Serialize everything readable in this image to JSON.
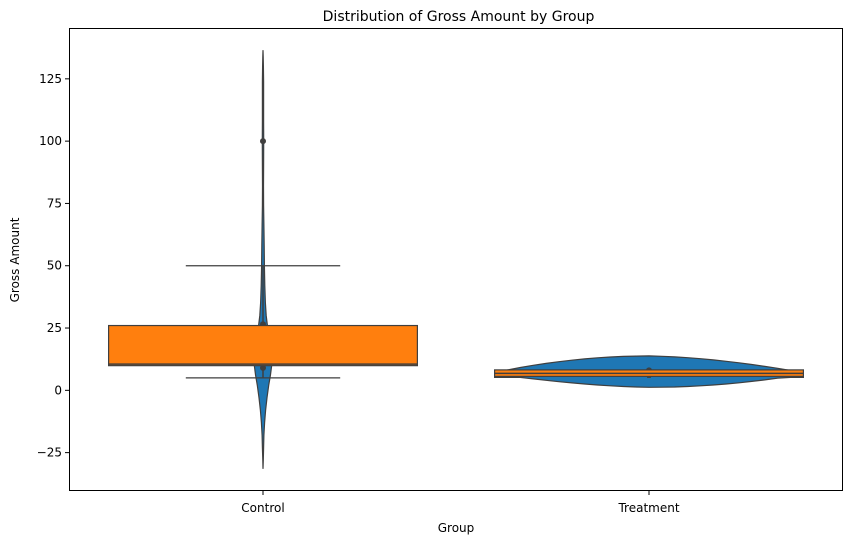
{
  "chart_data": {
    "type": "violin",
    "title": "Distribution of Gross Amount by Group",
    "xlabel": "Group",
    "ylabel": "Gross Amount",
    "categories": [
      "Control",
      "Treatment"
    ],
    "ylim": [
      -40,
      145
    ],
    "yticks": [
      -25,
      0,
      25,
      50,
      75,
      100,
      125
    ],
    "ytick_labels": [
      "−25",
      "0",
      "25",
      "50",
      "75",
      "100",
      "125"
    ],
    "grid": false,
    "legend": "none",
    "colors": {
      "violin": "#1f77b4",
      "box": "#ff7f0e",
      "line": "#3f3f3f"
    },
    "violins": [
      {
        "category": "Control",
        "range": [
          -31.5,
          136.5
        ],
        "density_profile": [
          [
            -31.5,
            0.0
          ],
          [
            -28,
            0.25
          ],
          [
            -23,
            0.6
          ],
          [
            -18,
            0.95
          ],
          [
            -13,
            1.55
          ],
          [
            -8,
            2.6
          ],
          [
            -3,
            4.0
          ],
          [
            2,
            5.7
          ],
          [
            6,
            7.4
          ],
          [
            10,
            8.7
          ],
          [
            14,
            9.2
          ],
          [
            18,
            8.2
          ],
          [
            22,
            6.2
          ],
          [
            26,
            4.4
          ],
          [
            30,
            3.2
          ],
          [
            35,
            2.4
          ],
          [
            42,
            1.8
          ],
          [
            50,
            1.4
          ],
          [
            58,
            1.2
          ],
          [
            66,
            0.9
          ],
          [
            74,
            0.6
          ],
          [
            82,
            0.5
          ],
          [
            90,
            0.55
          ],
          [
            100,
            0.7
          ],
          [
            108,
            0.55
          ],
          [
            116,
            0.55
          ],
          [
            124,
            0.65
          ],
          [
            130,
            0.45
          ],
          [
            134,
            0.2
          ],
          [
            136.5,
            0.0
          ]
        ],
        "inner_quartiles": [
          9,
          26.5
        ],
        "inner_whiskers": [
          5,
          50
        ],
        "inner_points": [
          9,
          26.5,
          100
        ]
      },
      {
        "category": "Treatment",
        "range": [
          1.2,
          13.8
        ],
        "density_profile": [
          [
            1.2,
            0.0
          ],
          [
            2.5,
            1.2
          ],
          [
            4,
            2.3
          ],
          [
            5.5,
            3.0
          ],
          [
            7,
            3.1
          ],
          [
            8.5,
            3.0
          ],
          [
            10,
            2.5
          ],
          [
            11.5,
            1.8
          ],
          [
            12.8,
            0.9
          ],
          [
            13.8,
            0.0
          ]
        ],
        "inner_quartiles": [
          5,
          8.5
        ],
        "inner_whiskers": [
          5,
          8.5
        ],
        "inner_points": [
          8
        ]
      }
    ],
    "boxes": [
      {
        "category": "Control",
        "whisker_low": 5,
        "q1": 9.9,
        "median": 10.5,
        "q3": 26,
        "whisker_high": 50
      },
      {
        "category": "Treatment",
        "whisker_low": 5.2,
        "q1": 5.6,
        "median": 6.8,
        "q3": 8.2,
        "whisker_high": 8.6
      }
    ]
  }
}
